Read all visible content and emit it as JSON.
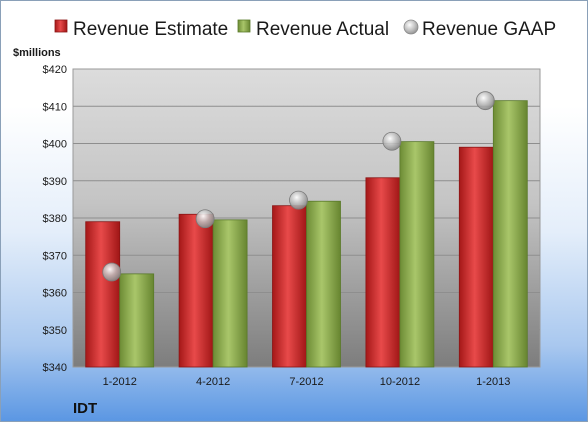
{
  "chart_data": {
    "type": "bar",
    "categories": [
      "1-2012",
      "4-2012",
      "7-2012",
      "10-2012",
      "1-2013"
    ],
    "series": [
      {
        "name": "Revenue Estimate",
        "kind": "bar",
        "color": "#d42a2a",
        "values": [
          379,
          381,
          383.3,
          390.8,
          399
        ]
      },
      {
        "name": "Revenue Actual",
        "kind": "bar",
        "color": "#8ab04a",
        "values": [
          365,
          379.5,
          384.5,
          400.5,
          411.5
        ]
      },
      {
        "name": "Revenue GAAP",
        "kind": "marker",
        "color": "#b8b8b8",
        "values": [
          365.5,
          379.8,
          384.8,
          400.6,
          411.5
        ]
      }
    ],
    "ylabel": "$millions",
    "ylim": [
      340,
      420
    ],
    "yticks": [
      "$340",
      "$350",
      "$360",
      "$370",
      "$380",
      "$390",
      "$400",
      "$410",
      "$420"
    ],
    "ytick_values": [
      340,
      350,
      360,
      370,
      380,
      390,
      400,
      410,
      420
    ],
    "grid": true,
    "legend_position": "top",
    "footer_label": "IDT"
  }
}
